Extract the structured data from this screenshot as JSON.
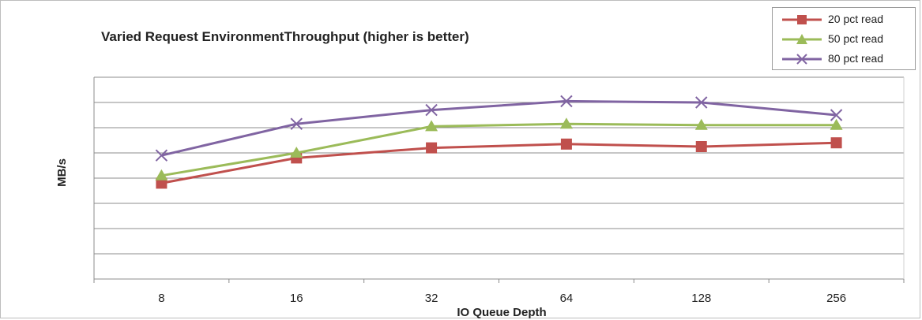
{
  "chart_data": {
    "type": "line",
    "title": "Varied Request EnvironmentThroughput  (higher is better)",
    "xlabel": "IO Queue Depth",
    "ylabel": "MB/s",
    "categories": [
      "8",
      "16",
      "32",
      "64",
      "128",
      "256"
    ],
    "ylim": [
      0,
      8
    ],
    "y_tick_labels_shown": false,
    "grid": "horizontal",
    "legend_position": "top-right",
    "series": [
      {
        "name": "20 pct read",
        "values": [
          3.8,
          4.8,
          5.2,
          5.35,
          5.25,
          5.4
        ],
        "color": "#c0504d",
        "marker": "square"
      },
      {
        "name": "50 pct read",
        "values": [
          4.1,
          5.0,
          6.05,
          6.15,
          6.1,
          6.1
        ],
        "color": "#9bbb59",
        "marker": "triangle"
      },
      {
        "name": "80 pct read",
        "values": [
          4.9,
          6.15,
          6.7,
          7.05,
          7.0,
          6.5
        ],
        "color": "#8064a2",
        "marker": "x"
      }
    ]
  }
}
